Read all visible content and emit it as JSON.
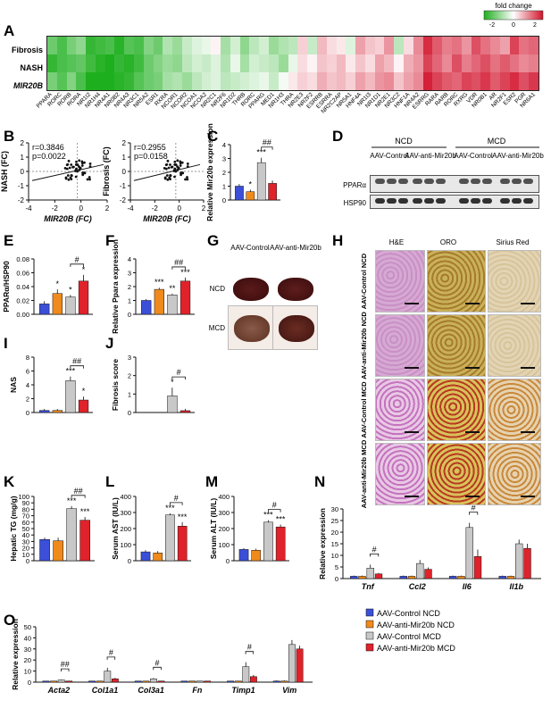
{
  "panels": {
    "A": "A",
    "B": "B",
    "C": "C",
    "D": "D",
    "E": "E",
    "F": "F",
    "G": "G",
    "H": "H",
    "I": "I",
    "J": "J",
    "K": "K",
    "L": "L",
    "M": "M",
    "N": "N",
    "O": "O"
  },
  "heatmap": {
    "legend_title": "fold change",
    "legend_ticks": [
      "-2",
      "0",
      "2"
    ],
    "rows": [
      "Fibrosis",
      "NASH",
      "MIR20B"
    ],
    "columns": [
      "PPARA",
      "RORC",
      "RORB",
      "RORA",
      "NR1I2",
      "NR1H4",
      "NR4A1",
      "NR0B2",
      "NR4A3",
      "NR3C1",
      "NR5A2",
      "ESR1",
      "RXRA",
      "NCOR1",
      "NCOR2",
      "NCOA1",
      "NCOA2",
      "NR2C1",
      "NR2F6",
      "NR1D2",
      "THRB",
      "RORC",
      "PPARG",
      "MED1",
      "NR1H3",
      "THRA",
      "NR2E3",
      "NR2F2",
      "ESRRB",
      "ESRRA",
      "NR2C2AP",
      "NR5A1",
      "HNF4A",
      "NR1I3",
      "NR1D1",
      "NR2E1",
      "NR3C2",
      "HNF1A",
      "NR4A2",
      "ESRRG",
      "RARA",
      "RARB",
      "RORC",
      "RXRG",
      "VDR",
      "NR0B1",
      "AR",
      "NR2F1",
      "ESR2",
      "PGR",
      "NR6A1"
    ],
    "values": [
      [
        -1.3,
        -1.6,
        -1.2,
        -1.0,
        -1.8,
        -1.7,
        -1.6,
        -1.9,
        -1.5,
        -1.6,
        -1.1,
        -1.3,
        -0.7,
        -0.9,
        -0.5,
        -0.3,
        -0.2,
        0.1,
        -0.8,
        -0.4,
        -1.0,
        -0.6,
        -0.4,
        -0.9,
        -0.7,
        -0.6,
        0.4,
        -0.5,
        0.6,
        0.3,
        0.2,
        -0.3,
        0.8,
        0.5,
        0.4,
        0.9,
        -0.6,
        0.3,
        1.0,
        1.8,
        1.4,
        1.1,
        1.2,
        0.9,
        1.5,
        1.2,
        1.0,
        0.8,
        1.6,
        1.2,
        1.3
      ],
      [
        -1.8,
        -1.6,
        -1.5,
        -1.4,
        -1.7,
        -1.9,
        -2.0,
        -1.8,
        -1.9,
        -1.7,
        -1.3,
        -1.1,
        -0.9,
        -1.0,
        -0.6,
        -0.4,
        -0.5,
        -0.3,
        -0.7,
        -0.2,
        -0.8,
        -0.4,
        -0.5,
        -0.6,
        -0.9,
        -0.2,
        0.3,
        0.1,
        0.5,
        0.4,
        0.6,
        0.2,
        0.5,
        0.3,
        0.8,
        0.6,
        0.1,
        0.7,
        0.9,
        1.6,
        1.3,
        1.0,
        1.5,
        1.1,
        1.3,
        1.5,
        1.2,
        1.4,
        1.2,
        1.0,
        1.1
      ],
      [
        -1.2,
        -1.5,
        -1.1,
        -1.6,
        -2.0,
        -2.1,
        -2.0,
        -1.9,
        -1.8,
        -1.5,
        -1.3,
        -1.2,
        -0.8,
        -0.7,
        -0.9,
        -0.6,
        -0.4,
        -0.3,
        -0.6,
        -0.5,
        -0.4,
        -0.3,
        -0.2,
        -0.5,
        -0.1,
        0.2,
        0.4,
        0.3,
        0.7,
        0.5,
        0.6,
        0.4,
        0.8,
        0.6,
        0.9,
        1.0,
        0.5,
        0.8,
        1.0,
        1.9,
        1.6,
        1.4,
        1.3,
        1.6,
        1.5,
        1.7,
        1.4,
        1.6,
        1.8,
        1.5,
        1.7
      ]
    ]
  },
  "panel_b": {
    "left": {
      "r": "r=0.3846",
      "p": "p=0.0022",
      "ylabel": "NASH (FC)",
      "xlabel": "MIR20B (FC)",
      "xticks": [
        "-4",
        "-2",
        "0",
        "2"
      ],
      "yticks": [
        "-2",
        "-1",
        "0",
        "1",
        "2"
      ]
    },
    "right": {
      "r": "r=0.2955",
      "p": "p=0.0158",
      "ylabel": "Fibrosis (FC)",
      "xlabel": "MIR20B (FC)",
      "xticks": [
        "-4",
        "-2",
        "0",
        "2"
      ],
      "yticks": [
        "-2",
        "-1",
        "0",
        "1",
        "2"
      ]
    }
  },
  "panel_d": {
    "ncd": "NCD",
    "mcd": "MCD",
    "lanes": [
      "AAV-Control",
      "AAV-anti-Mir20b",
      "AAV-Control",
      "AAV-anti-Mir20b"
    ],
    "rows": [
      "PPARα",
      "HSP90"
    ]
  },
  "panel_g": {
    "cols": [
      "AAV-Control",
      "AAV-anti-Mir20b"
    ],
    "rows": [
      "NCD",
      "MCD"
    ]
  },
  "panel_h": {
    "cols": [
      "H&E",
      "ORO",
      "Sirius Red"
    ],
    "rows": [
      "AAV-Control NCD",
      "AAV-anti-Mir20b NCD",
      "AAV-Control MCD",
      "AAV-anti-Mir20b MCD"
    ]
  },
  "colors": {
    "ctrl_ncd": "#3b4fd8",
    "anti_ncd": "#f08a1c",
    "ctrl_mcd": "#c8c8c8",
    "anti_mcd": "#e0222a"
  },
  "legend": [
    "AAV-Control NCD",
    "AAV-anti-Mir20b NCD",
    "AAV-Control MCD",
    "AAV-anti-Mir20b MCD"
  ],
  "chart_data": [
    {
      "panel": "C",
      "type": "bar",
      "ylabel": "Relative Mir20b expression",
      "yticks": [
        "0",
        "1",
        "2",
        "3",
        "4"
      ],
      "ylim": [
        0,
        4
      ],
      "values": [
        1.0,
        0.6,
        2.7,
        1.2
      ],
      "errors": [
        0.15,
        0.15,
        0.35,
        0.2
      ],
      "stars": [
        "",
        "*",
        "***",
        ""
      ],
      "bracket": "##"
    },
    {
      "panel": "E",
      "type": "bar",
      "ylabel": "PPARα/HSP90",
      "yticks": [
        "0.00",
        "0.02",
        "0.04",
        "0.06",
        "0.08"
      ],
      "ylim": [
        0,
        0.08
      ],
      "values": [
        0.015,
        0.03,
        0.025,
        0.048
      ],
      "errors": [
        0.004,
        0.006,
        0.003,
        0.009
      ],
      "stars": [
        "",
        "*",
        "*",
        "*"
      ],
      "bracket": "#"
    },
    {
      "panel": "F",
      "type": "bar",
      "ylabel": "Relative Ppara expression",
      "yticks": [
        "0",
        "1",
        "2",
        "3",
        "4"
      ],
      "ylim": [
        0,
        4
      ],
      "values": [
        1.0,
        1.8,
        1.4,
        2.4
      ],
      "errors": [
        0.1,
        0.12,
        0.1,
        0.25
      ],
      "stars": [
        "",
        "***",
        "**",
        "***"
      ],
      "bracket": "##"
    },
    {
      "panel": "I",
      "type": "bar",
      "ylabel": "NAS",
      "yticks": [
        "0",
        "2",
        "4",
        "6",
        "8"
      ],
      "ylim": [
        0,
        8
      ],
      "values": [
        0.3,
        0.3,
        4.6,
        1.8
      ],
      "errors": [
        0.2,
        0.2,
        0.6,
        0.5
      ],
      "stars": [
        "",
        "",
        "***",
        "*"
      ],
      "bracket": "##"
    },
    {
      "panel": "J",
      "type": "bar",
      "ylabel": "Fibrosis score",
      "yticks": [
        "0",
        "1",
        "2",
        "3"
      ],
      "ylim": [
        0,
        3
      ],
      "values": [
        0.0,
        0.0,
        0.9,
        0.1
      ],
      "errors": [
        0,
        0,
        0.45,
        0.1
      ],
      "stars": [
        "",
        "",
        "*",
        ""
      ],
      "bracket": "#"
    },
    {
      "panel": "K",
      "type": "bar",
      "ylabel": "Hepatic TG (mg/g)",
      "yticks": [
        "0",
        "10",
        "20",
        "30",
        "40",
        "50",
        "60",
        "70",
        "80",
        "90",
        "100"
      ],
      "ylim": [
        0,
        100
      ],
      "values": [
        33,
        31,
        81,
        63
      ],
      "errors": [
        3,
        5,
        4,
        5
      ],
      "stars": [
        "",
        "",
        "***",
        "***"
      ],
      "bracket": "##"
    },
    {
      "panel": "L",
      "type": "bar",
      "ylabel": "Serum AST (IU/L)",
      "yticks": [
        "0",
        "100",
        "200",
        "300",
        "400"
      ],
      "ylim": [
        0,
        400
      ],
      "values": [
        55,
        48,
        285,
        215
      ],
      "errors": [
        10,
        12,
        10,
        25
      ],
      "stars": [
        "",
        "",
        "***",
        "***"
      ],
      "bracket": "#"
    },
    {
      "panel": "M",
      "type": "bar",
      "ylabel": "Serum ALT (IU/L)",
      "yticks": [
        "0",
        "100",
        "200",
        "300",
        "400"
      ],
      "ylim": [
        0,
        400
      ],
      "values": [
        70,
        65,
        240,
        210
      ],
      "errors": [
        8,
        10,
        12,
        15
      ],
      "stars": [
        "",
        "",
        "***",
        "***"
      ],
      "bracket": "#"
    },
    {
      "panel": "N",
      "type": "bar",
      "ylabel": "Relative expression",
      "yticks": [
        "0",
        "5",
        "10",
        "15",
        "20",
        "25",
        "30"
      ],
      "ylim": [
        0,
        30
      ],
      "categories": [
        "Tnf",
        "Ccl2",
        "Il6",
        "Il1b"
      ],
      "series": [
        {
          "name": "AAV-Control NCD",
          "values": [
            1,
            1,
            1,
            1
          ]
        },
        {
          "name": "AAV-anti-Mir20b NCD",
          "values": [
            1,
            1,
            1,
            1
          ]
        },
        {
          "name": "AAV-Control MCD",
          "values": [
            4.5,
            6.5,
            22,
            15
          ]
        },
        {
          "name": "AAV-anti-Mir20b MCD",
          "values": [
            2,
            4,
            9.5,
            13
          ]
        }
      ],
      "errors": [
        [
          0.3,
          0.3,
          0.3,
          0.3
        ],
        [
          0.3,
          0.3,
          0.3,
          0.3
        ],
        [
          1.5,
          1.5,
          2,
          1.8
        ],
        [
          0.4,
          0.8,
          3,
          2
        ]
      ],
      "stars": [
        [
          "",
          "",
          [
            "*"
          ],
          ""
        ],
        [
          "",
          "",
          [
            "**"
          ],
          [
            "**"
          ]
        ],
        [
          "",
          "",
          [
            "***"
          ],
          [
            "*"
          ]
        ],
        [
          "",
          "",
          [
            "***"
          ],
          [
            "***"
          ]
        ]
      ],
      "brackets": [
        "#",
        "",
        "#",
        ""
      ]
    },
    {
      "panel": "O",
      "type": "bar",
      "ylabel": "Relative expression",
      "yticks": [
        "0",
        "10",
        "20",
        "30",
        "40",
        "50"
      ],
      "ylim": [
        0,
        50
      ],
      "categories": [
        "Acta2",
        "Col1a1",
        "Col3a1",
        "Fn",
        "Timp1",
        "Vim"
      ],
      "series": [
        {
          "name": "AAV-Control NCD",
          "values": [
            1,
            1,
            1,
            1,
            1,
            1
          ]
        },
        {
          "name": "AAV-anti-Mir20b NCD",
          "values": [
            1,
            1,
            1,
            1,
            1,
            1
          ]
        },
        {
          "name": "AAV-Control MCD",
          "values": [
            2,
            10,
            3,
            1,
            14,
            34
          ]
        },
        {
          "name": "AAV-anti-Mir20b MCD",
          "values": [
            1,
            3,
            1,
            1,
            5,
            30
          ]
        }
      ],
      "errors": [
        [
          0.2,
          0.2,
          0.2,
          0.2,
          0.2,
          0.5
        ],
        [
          0.2,
          0.2,
          0.2,
          0.2,
          0.2,
          0.5
        ],
        [
          0.3,
          3,
          0.8,
          0.2,
          4,
          4
        ],
        [
          0.2,
          1,
          0.3,
          0.2,
          1.5,
          3
        ]
      ],
      "brackets": [
        "##",
        "#",
        "#",
        "",
        "#",
        ""
      ]
    }
  ]
}
